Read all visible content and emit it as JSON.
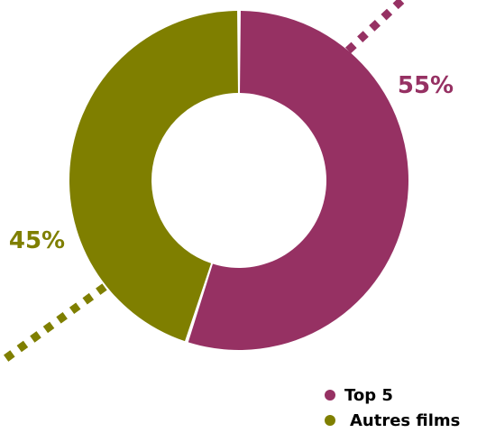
{
  "chart_data": {
    "type": "pie",
    "style": "donut",
    "series": [
      {
        "name": "Top 5",
        "value": 55,
        "label": "55%",
        "color": "#963163"
      },
      {
        "name": "Autres films",
        "value": 45,
        "label": "45%",
        "color": "#7f7f00"
      }
    ],
    "legend": {
      "placement": "bottom-right",
      "entries": [
        "Top 5",
        "Autres films"
      ]
    }
  }
}
